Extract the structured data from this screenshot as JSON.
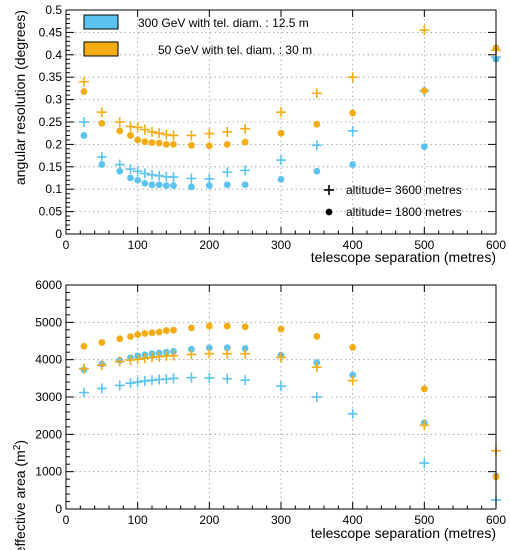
{
  "colors": {
    "series_300": "#5bc3f0",
    "series_50": "#f5ac12"
  },
  "chart_data": [
    {
      "type": "scatter",
      "xlabel": "telescope separation (metres)",
      "ylabel": "angular resolution  (degrees)",
      "xlim": [
        0,
        600
      ],
      "ylim": [
        0,
        0.5
      ],
      "xticks": [
        0,
        100,
        200,
        300,
        400,
        500,
        600
      ],
      "yticks": [
        0,
        0.05,
        0.1,
        0.15,
        0.2,
        0.25,
        0.3,
        0.35,
        0.4,
        0.45,
        0.5
      ],
      "grid": true,
      "legend": {
        "placement": "top-left",
        "entries": [
          {
            "label": "300 GeV with tel. diam. : 12.5 m",
            "color": "#5bc3f0"
          },
          {
            "label": "50 GeV with tel. diam. : 30 m",
            "color": "#f5ac12"
          }
        ]
      },
      "marker_legend": {
        "placement": "bottom-right",
        "entries": [
          {
            "marker": "cross",
            "label": "altitude= 3600 metres"
          },
          {
            "marker": "circle",
            "label": "altitude= 1800 metres"
          }
        ]
      },
      "series": [
        {
          "energy": "300 GeV",
          "altitude": "3600",
          "marker": "cross",
          "color": "#5bc3f0",
          "x": [
            25,
            50,
            75,
            90,
            100,
            110,
            120,
            130,
            140,
            150,
            175,
            200,
            225,
            250,
            300,
            350,
            400,
            500,
            600
          ],
          "y": [
            0.25,
            0.172,
            0.155,
            0.145,
            0.14,
            0.135,
            0.132,
            0.13,
            0.128,
            0.127,
            0.124,
            0.123,
            0.138,
            0.142,
            0.165,
            0.198,
            0.23,
            0.32,
            0.395
          ]
        },
        {
          "energy": "300 GeV",
          "altitude": "1800",
          "marker": "circle",
          "color": "#5bc3f0",
          "x": [
            25,
            50,
            75,
            90,
            100,
            110,
            120,
            130,
            140,
            150,
            175,
            200,
            225,
            250,
            300,
            350,
            400,
            500,
            600
          ],
          "y": [
            0.22,
            0.155,
            0.14,
            0.125,
            0.12,
            0.113,
            0.11,
            0.11,
            0.108,
            0.108,
            0.105,
            0.108,
            0.11,
            0.11,
            0.122,
            0.14,
            0.155,
            0.195,
            0.39
          ]
        },
        {
          "energy": "50 GeV",
          "altitude": "3600",
          "marker": "cross",
          "color": "#f5ac12",
          "x": [
            25,
            50,
            75,
            90,
            100,
            110,
            120,
            130,
            140,
            150,
            175,
            200,
            225,
            250,
            300,
            350,
            400,
            500,
            600
          ],
          "y": [
            0.34,
            0.272,
            0.25,
            0.24,
            0.238,
            0.233,
            0.228,
            0.225,
            0.222,
            0.22,
            0.22,
            0.224,
            0.228,
            0.235,
            0.272,
            0.314,
            0.35,
            0.455,
            0.41
          ]
        },
        {
          "energy": "50 GeV",
          "altitude": "1800",
          "marker": "circle",
          "color": "#f5ac12",
          "x": [
            25,
            50,
            75,
            90,
            100,
            110,
            120,
            130,
            140,
            150,
            175,
            200,
            225,
            250,
            300,
            350,
            400,
            500,
            600
          ],
          "y": [
            0.318,
            0.247,
            0.23,
            0.22,
            0.21,
            0.206,
            0.204,
            0.203,
            0.2,
            0.2,
            0.198,
            0.197,
            0.2,
            0.205,
            0.225,
            0.245,
            0.27,
            0.32,
            0.415
          ]
        }
      ]
    },
    {
      "type": "scatter",
      "xlabel": "telescope separation (metres)",
      "ylabel_main": "effective area   (m",
      "ylabel_sup": "2",
      "ylabel_close": ")",
      "xlim": [
        0,
        600
      ],
      "ylim": [
        0,
        6000
      ],
      "xticks": [
        0,
        100,
        200,
        300,
        400,
        500,
        600
      ],
      "yticks": [
        0,
        1000,
        2000,
        3000,
        4000,
        5000,
        6000
      ],
      "grid": true,
      "series": [
        {
          "energy": "300 GeV",
          "altitude": "3600",
          "marker": "cross",
          "color": "#5bc3f0",
          "x": [
            25,
            50,
            75,
            90,
            100,
            110,
            120,
            130,
            140,
            150,
            175,
            200,
            225,
            250,
            300,
            350,
            400,
            500,
            600
          ],
          "y": [
            3120,
            3230,
            3310,
            3370,
            3400,
            3430,
            3450,
            3470,
            3480,
            3500,
            3520,
            3510,
            3490,
            3450,
            3290,
            3000,
            2550,
            1230,
            240
          ]
        },
        {
          "energy": "300 GeV",
          "altitude": "1800",
          "marker": "circle",
          "color": "#5bc3f0",
          "x": [
            25,
            50,
            75,
            90,
            100,
            110,
            120,
            130,
            140,
            150,
            175,
            200,
            225,
            250,
            300,
            350,
            400,
            500,
            600
          ],
          "y": [
            3730,
            3880,
            3980,
            4050,
            4100,
            4130,
            4160,
            4180,
            4200,
            4220,
            4280,
            4320,
            4320,
            4300,
            4120,
            3920,
            3590,
            2310,
            880
          ]
        },
        {
          "energy": "50 GeV",
          "altitude": "3600",
          "marker": "cross",
          "color": "#f5ac12",
          "x": [
            25,
            50,
            75,
            90,
            100,
            110,
            120,
            130,
            140,
            150,
            175,
            200,
            225,
            250,
            300,
            350,
            400,
            500,
            600
          ],
          "y": [
            3760,
            3850,
            3950,
            3990,
            4010,
            4040,
            4060,
            4080,
            4100,
            4110,
            4140,
            4160,
            4160,
            4160,
            4060,
            3800,
            3440,
            2240,
            1560
          ]
        },
        {
          "energy": "50 GeV",
          "altitude": "1800",
          "marker": "circle",
          "color": "#f5ac12",
          "x": [
            25,
            50,
            75,
            90,
            100,
            110,
            120,
            130,
            140,
            150,
            175,
            200,
            225,
            250,
            300,
            350,
            400,
            500,
            600
          ],
          "y": [
            4360,
            4460,
            4560,
            4620,
            4670,
            4700,
            4720,
            4740,
            4780,
            4790,
            4850,
            4900,
            4900,
            4880,
            4820,
            4620,
            4330,
            3220,
            860
          ]
        }
      ]
    }
  ]
}
